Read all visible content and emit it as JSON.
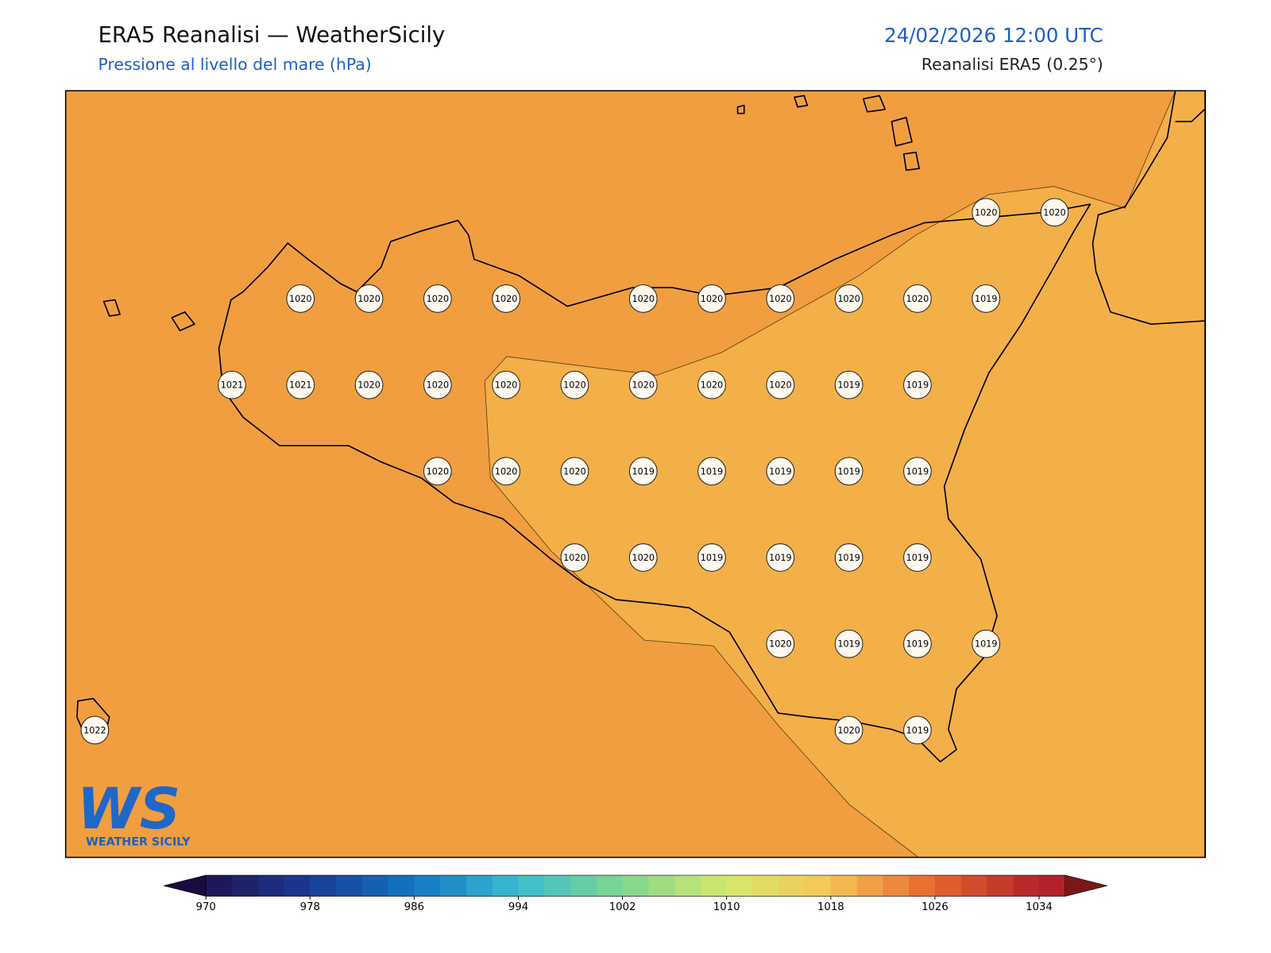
{
  "header": {
    "title": "ERA5 Reanalisi — WeatherSicily",
    "subtitle": "Pressione al livello del mare (hPa)",
    "datetime": "24/02/2026 12:00 UTC",
    "source": "Reanalisi ERA5 (0.25°)"
  },
  "stations": [
    [
      null,
      null,
      null,
      null,
      null,
      null,
      null,
      null,
      null,
      null,
      null,
      null,
      null,
      1020,
      1020
    ],
    [
      null,
      null,
      null,
      1020,
      1020,
      1020,
      1020,
      null,
      1020,
      1020,
      1020,
      1020,
      1020,
      1019,
      null
    ],
    [
      null,
      null,
      1021,
      1021,
      1020,
      1020,
      1020,
      1020,
      1020,
      1020,
      1020,
      1019,
      1019,
      null,
      null
    ],
    [
      null,
      null,
      null,
      null,
      null,
      1020,
      1020,
      1020,
      1019,
      1019,
      1019,
      1019,
      1019,
      null,
      null
    ],
    [
      null,
      null,
      null,
      null,
      null,
      null,
      null,
      1020,
      1020,
      1019,
      1019,
      1019,
      1019,
      null,
      null
    ],
    [
      null,
      null,
      null,
      null,
      null,
      null,
      null,
      null,
      null,
      null,
      1020,
      1019,
      1019,
      1019,
      null
    ],
    [
      1022,
      null,
      null,
      null,
      null,
      null,
      null,
      null,
      null,
      null,
      null,
      1020,
      1019,
      null,
      null
    ]
  ],
  "colorbar": {
    "lim": [
      970,
      1036
    ],
    "step": 2,
    "ticks": [
      970,
      978,
      986,
      994,
      1002,
      1010,
      1018,
      1026,
      1034
    ],
    "colors": [
      "#1f1350",
      "#1a3a94",
      "#1276c6",
      "#3bbccf",
      "#7dd78e",
      "#d6e86c",
      "#f7c455",
      "#e6652d",
      "#b3222a"
    ],
    "under_color": "#1a0a40",
    "over_color": "#7a1818"
  },
  "logo": {
    "mark": "WS",
    "name": "WEATHER SICILY"
  }
}
